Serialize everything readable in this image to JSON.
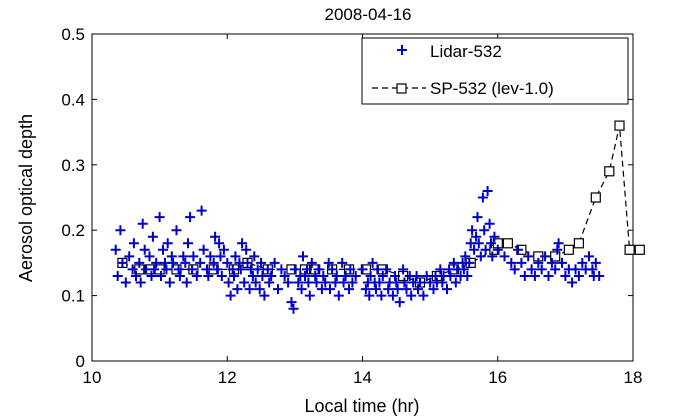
{
  "chart_data": {
    "type": "scatter",
    "title": "2008-04-16",
    "xlabel": "Local time (hr)",
    "ylabel": "Aerosol optical depth",
    "xlim": [
      10,
      18
    ],
    "ylim": [
      0,
      0.5
    ],
    "xticks": [
      10,
      12,
      14,
      16,
      18
    ],
    "yticks": [
      0,
      0.1,
      0.2,
      0.3,
      0.4,
      0.5
    ],
    "xtick_labels": [
      "10",
      "12",
      "14",
      "16",
      "18"
    ],
    "ytick_labels": [
      "0",
      "0.1",
      "0.2",
      "0.3",
      "0.4",
      "0.5"
    ],
    "grid": false,
    "legend_position": "top-right",
    "series": [
      {
        "name": "Lidar-532",
        "marker": "plus",
        "color": "#0000cc",
        "points": [
          [
            10.35,
            0.17
          ],
          [
            10.38,
            0.13
          ],
          [
            10.42,
            0.2
          ],
          [
            10.45,
            0.15
          ],
          [
            10.5,
            0.12
          ],
          [
            10.55,
            0.16
          ],
          [
            10.6,
            0.14
          ],
          [
            10.62,
            0.18
          ],
          [
            10.65,
            0.13
          ],
          [
            10.7,
            0.15
          ],
          [
            10.72,
            0.12
          ],
          [
            10.75,
            0.21
          ],
          [
            10.78,
            0.17
          ],
          [
            10.8,
            0.14
          ],
          [
            10.85,
            0.16
          ],
          [
            10.88,
            0.13
          ],
          [
            10.9,
            0.19
          ],
          [
            10.92,
            0.14
          ],
          [
            10.95,
            0.15
          ],
          [
            11.0,
            0.22
          ],
          [
            11.02,
            0.13
          ],
          [
            11.05,
            0.17
          ],
          [
            11.08,
            0.15
          ],
          [
            11.1,
            0.14
          ],
          [
            11.12,
            0.18
          ],
          [
            11.15,
            0.12
          ],
          [
            11.18,
            0.16
          ],
          [
            11.2,
            0.15
          ],
          [
            11.25,
            0.2
          ],
          [
            11.28,
            0.14
          ],
          [
            11.3,
            0.13
          ],
          [
            11.35,
            0.16
          ],
          [
            11.38,
            0.15
          ],
          [
            11.4,
            0.12
          ],
          [
            11.42,
            0.18
          ],
          [
            11.45,
            0.22
          ],
          [
            11.48,
            0.14
          ],
          [
            11.5,
            0.16
          ],
          [
            11.55,
            0.13
          ],
          [
            11.6,
            0.15
          ],
          [
            11.62,
            0.23
          ],
          [
            11.65,
            0.17
          ],
          [
            11.7,
            0.14
          ],
          [
            11.72,
            0.13
          ],
          [
            11.75,
            0.16
          ],
          [
            11.8,
            0.15
          ],
          [
            11.82,
            0.19
          ],
          [
            11.85,
            0.14
          ],
          [
            11.88,
            0.18
          ],
          [
            11.9,
            0.16
          ],
          [
            11.92,
            0.13
          ],
          [
            11.95,
            0.17
          ],
          [
            12.0,
            0.15
          ],
          [
            12.02,
            0.12
          ],
          [
            12.05,
            0.1
          ],
          [
            12.08,
            0.14
          ],
          [
            12.1,
            0.13
          ],
          [
            12.12,
            0.16
          ],
          [
            12.15,
            0.11
          ],
          [
            12.18,
            0.15
          ],
          [
            12.2,
            0.14
          ],
          [
            12.22,
            0.18
          ],
          [
            12.25,
            0.12
          ],
          [
            12.28,
            0.17
          ],
          [
            12.3,
            0.15
          ],
          [
            12.33,
            0.11
          ],
          [
            12.35,
            0.14
          ],
          [
            12.38,
            0.13
          ],
          [
            12.4,
            0.16
          ],
          [
            12.42,
            0.12
          ],
          [
            12.45,
            0.14
          ],
          [
            12.48,
            0.11
          ],
          [
            12.5,
            0.15
          ],
          [
            12.52,
            0.13
          ],
          [
            12.55,
            0.1
          ],
          [
            12.6,
            0.14
          ],
          [
            12.62,
            0.12
          ],
          [
            12.65,
            0.13
          ],
          [
            12.7,
            0.15
          ],
          [
            12.75,
            0.11
          ],
          [
            12.8,
            0.14
          ],
          [
            12.85,
            0.13
          ],
          [
            12.9,
            0.12
          ],
          [
            12.95,
            0.09
          ],
          [
            12.98,
            0.08
          ],
          [
            13.0,
            0.14
          ],
          [
            13.05,
            0.12
          ],
          [
            13.08,
            0.13
          ],
          [
            13.1,
            0.11
          ],
          [
            13.12,
            0.16
          ],
          [
            13.15,
            0.13
          ],
          [
            13.18,
            0.14
          ],
          [
            13.2,
            0.12
          ],
          [
            13.22,
            0.1
          ],
          [
            13.25,
            0.15
          ],
          [
            13.3,
            0.13
          ],
          [
            13.32,
            0.12
          ],
          [
            13.35,
            0.14
          ],
          [
            13.4,
            0.11
          ],
          [
            13.42,
            0.13
          ],
          [
            13.45,
            0.12
          ],
          [
            13.5,
            0.15
          ],
          [
            13.52,
            0.11
          ],
          [
            13.55,
            0.14
          ],
          [
            13.6,
            0.12
          ],
          [
            13.62,
            0.13
          ],
          [
            13.65,
            0.1
          ],
          [
            13.7,
            0.15
          ],
          [
            13.72,
            0.12
          ],
          [
            13.75,
            0.13
          ],
          [
            13.8,
            0.11
          ],
          [
            13.82,
            0.14
          ],
          [
            13.85,
            0.12
          ],
          [
            13.9,
            0.13
          ],
          [
            14.0,
            0.14
          ],
          [
            14.05,
            0.11
          ],
          [
            14.08,
            0.12
          ],
          [
            14.1,
            0.1
          ],
          [
            14.12,
            0.13
          ],
          [
            14.15,
            0.15
          ],
          [
            14.18,
            0.12
          ],
          [
            14.2,
            0.11
          ],
          [
            14.22,
            0.14
          ],
          [
            14.25,
            0.12
          ],
          [
            14.28,
            0.1
          ],
          [
            14.3,
            0.13
          ],
          [
            14.35,
            0.14
          ],
          [
            14.38,
            0.11
          ],
          [
            14.4,
            0.12
          ],
          [
            14.45,
            0.1
          ],
          [
            14.48,
            0.13
          ],
          [
            14.5,
            0.12
          ],
          [
            14.52,
            0.11
          ],
          [
            14.55,
            0.09
          ],
          [
            14.6,
            0.14
          ],
          [
            14.62,
            0.12
          ],
          [
            14.65,
            0.11
          ],
          [
            14.7,
            0.13
          ],
          [
            14.72,
            0.1
          ],
          [
            14.75,
            0.12
          ],
          [
            14.8,
            0.13
          ],
          [
            14.82,
            0.11
          ],
          [
            14.85,
            0.12
          ],
          [
            14.9,
            0.1
          ],
          [
            14.95,
            0.13
          ],
          [
            15.0,
            0.12
          ],
          [
            15.05,
            0.11
          ],
          [
            15.08,
            0.13
          ],
          [
            15.1,
            0.12
          ],
          [
            15.15,
            0.14
          ],
          [
            15.18,
            0.12
          ],
          [
            15.2,
            0.13
          ],
          [
            15.25,
            0.11
          ],
          [
            15.28,
            0.14
          ],
          [
            15.3,
            0.13
          ],
          [
            15.35,
            0.15
          ],
          [
            15.38,
            0.12
          ],
          [
            15.4,
            0.14
          ],
          [
            15.45,
            0.13
          ],
          [
            15.48,
            0.15
          ],
          [
            15.5,
            0.14
          ],
          [
            15.52,
            0.16
          ],
          [
            15.55,
            0.13
          ],
          [
            15.58,
            0.15
          ],
          [
            15.6,
            0.18
          ],
          [
            15.62,
            0.2
          ],
          [
            15.65,
            0.17
          ],
          [
            15.68,
            0.19
          ],
          [
            15.7,
            0.22
          ],
          [
            15.72,
            0.18
          ],
          [
            15.75,
            0.16
          ],
          [
            15.78,
            0.25
          ],
          [
            15.8,
            0.2
          ],
          [
            15.82,
            0.17
          ],
          [
            15.85,
            0.26
          ],
          [
            15.88,
            0.21
          ],
          [
            15.9,
            0.18
          ],
          [
            15.92,
            0.16
          ],
          [
            15.95,
            0.19
          ],
          [
            16.0,
            0.17
          ],
          [
            16.1,
            0.16
          ],
          [
            16.2,
            0.15
          ],
          [
            16.25,
            0.14
          ],
          [
            16.3,
            0.17
          ],
          [
            16.35,
            0.15
          ],
          [
            16.4,
            0.13
          ],
          [
            16.45,
            0.16
          ],
          [
            16.5,
            0.14
          ],
          [
            16.55,
            0.13
          ],
          [
            16.6,
            0.15
          ],
          [
            16.65,
            0.14
          ],
          [
            16.7,
            0.16
          ],
          [
            16.75,
            0.13
          ],
          [
            16.8,
            0.15
          ],
          [
            16.85,
            0.14
          ],
          [
            16.88,
            0.17
          ],
          [
            16.9,
            0.18
          ],
          [
            16.95,
            0.15
          ],
          [
            17.0,
            0.13
          ],
          [
            17.05,
            0.14
          ],
          [
            17.1,
            0.12
          ],
          [
            17.15,
            0.14
          ],
          [
            17.2,
            0.13
          ],
          [
            17.25,
            0.15
          ],
          [
            17.3,
            0.14
          ],
          [
            17.35,
            0.16
          ],
          [
            17.4,
            0.14
          ],
          [
            17.42,
            0.13
          ],
          [
            17.45,
            0.15
          ],
          [
            17.5,
            0.13
          ]
        ]
      },
      {
        "name": "SP-532 (lev-1.0)",
        "marker": "square",
        "line": "dashed",
        "color": "#000000",
        "points": [
          [
            10.45,
            0.15
          ],
          [
            10.7,
            0.14
          ],
          [
            10.85,
            0.14
          ],
          [
            11.0,
            0.14
          ],
          [
            11.25,
            0.14
          ],
          [
            11.5,
            0.14
          ],
          [
            11.8,
            0.14
          ],
          [
            12.1,
            0.14
          ],
          [
            12.3,
            0.15
          ],
          [
            12.6,
            0.14
          ],
          [
            12.95,
            0.14
          ],
          [
            13.15,
            0.14
          ],
          [
            13.3,
            0.14
          ],
          [
            13.55,
            0.14
          ],
          [
            13.8,
            0.14
          ],
          [
            14.05,
            0.14
          ],
          [
            14.3,
            0.14
          ],
          [
            14.6,
            0.13
          ],
          [
            14.85,
            0.12
          ],
          [
            15.1,
            0.13
          ],
          [
            15.35,
            0.14
          ],
          [
            15.6,
            0.15
          ],
          [
            15.95,
            0.17
          ],
          [
            16.0,
            0.18
          ],
          [
            16.15,
            0.18
          ],
          [
            16.35,
            0.17
          ],
          [
            16.6,
            0.16
          ],
          [
            16.85,
            0.16
          ],
          [
            17.05,
            0.17
          ],
          [
            17.2,
            0.18
          ],
          [
            17.45,
            0.25
          ],
          [
            17.65,
            0.29
          ],
          [
            17.8,
            0.36
          ],
          [
            17.95,
            0.17
          ],
          [
            18.1,
            0.17
          ]
        ]
      }
    ]
  }
}
